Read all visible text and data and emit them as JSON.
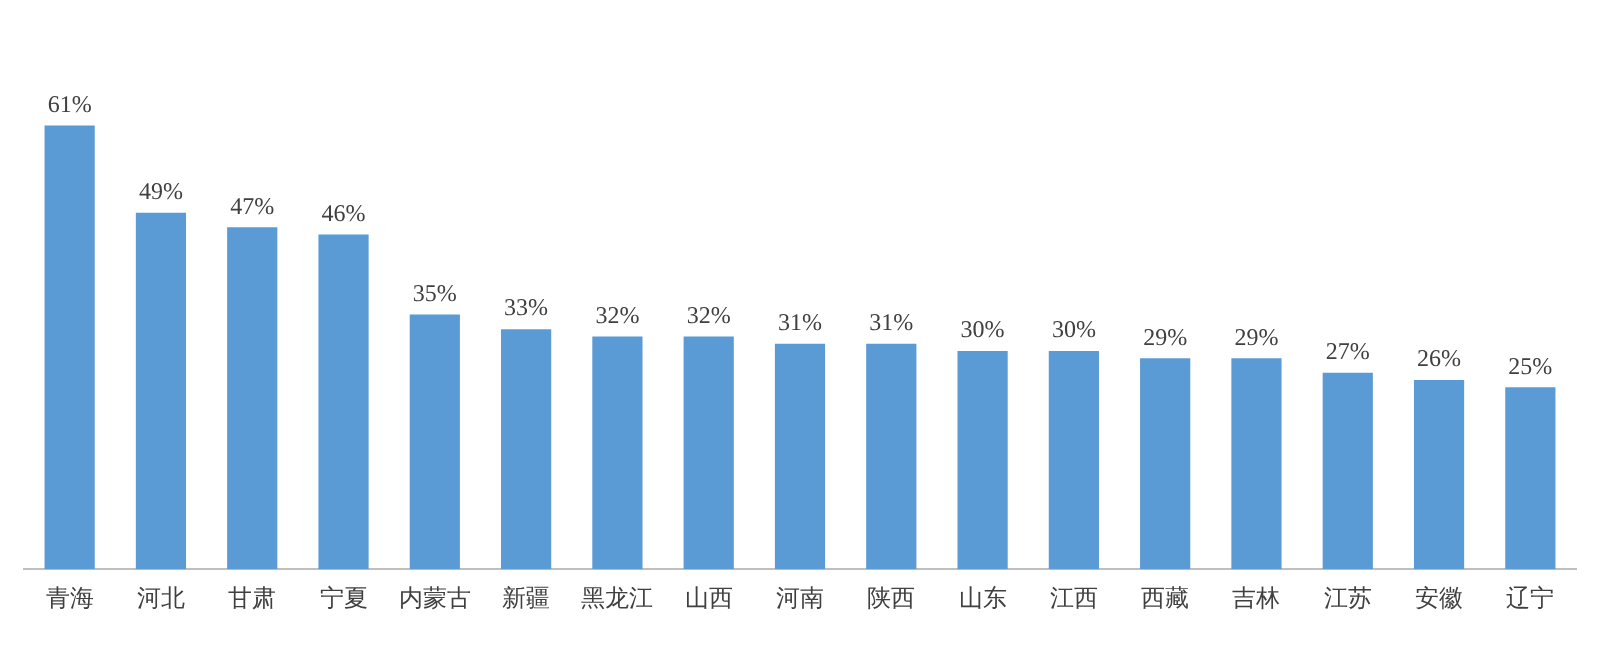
{
  "chart_data": {
    "type": "bar",
    "categories": [
      "青海",
      "河北",
      "甘肃",
      "宁夏",
      "内蒙古",
      "新疆",
      "黑龙江",
      "山西",
      "河南",
      "陕西",
      "山东",
      "江西",
      "西藏",
      "吉林",
      "江苏",
      "安徽",
      "辽宁"
    ],
    "values": [
      61,
      49,
      47,
      46,
      35,
      33,
      32,
      32,
      31,
      31,
      30,
      30,
      29,
      29,
      27,
      26,
      25
    ],
    "value_labels": [
      "61%",
      "49%",
      "47%",
      "46%",
      "35%",
      "33%",
      "32%",
      "32%",
      "31%",
      "31%",
      "30%",
      "30%",
      "29%",
      "29%",
      "27%",
      "26%",
      "25%"
    ],
    "color": "#5b9bd5",
    "grid": false,
    "legend": false
  }
}
